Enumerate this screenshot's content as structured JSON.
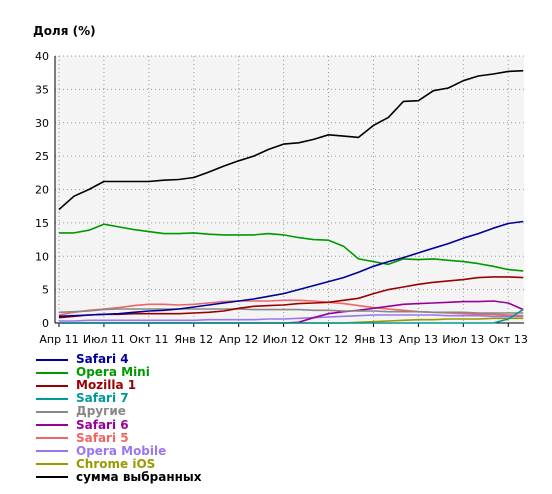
{
  "chart_data": {
    "type": "line",
    "title": "",
    "ylabel": "Доля (%)",
    "xlabel": "",
    "ylim": [
      0,
      40
    ],
    "yticks": [
      0,
      5,
      10,
      15,
      20,
      25,
      30,
      35,
      40
    ],
    "grid": true,
    "legend_position": "bottom",
    "x_ticks": [
      "Апр 11",
      "Июл 11",
      "Окт 11",
      "Янв 12",
      "Апр 12",
      "Июл 12",
      "Окт 12",
      "Янв 13",
      "Апр 13",
      "Июл 13",
      "Окт 13"
    ],
    "x": [
      "2011-04",
      "2011-05",
      "2011-06",
      "2011-07",
      "2011-08",
      "2011-09",
      "2011-10",
      "2011-11",
      "2011-12",
      "2012-01",
      "2012-02",
      "2012-03",
      "2012-04",
      "2012-05",
      "2012-06",
      "2012-07",
      "2012-08",
      "2012-09",
      "2012-10",
      "2012-11",
      "2012-12",
      "2013-01",
      "2013-02",
      "2013-03",
      "2013-04",
      "2013-05",
      "2013-06",
      "2013-07",
      "2013-08",
      "2013-09",
      "2013-10",
      "2013-11"
    ],
    "series": [
      {
        "name": "Safari 4",
        "color": "#000099",
        "values": [
          1.0,
          1.1,
          1.2,
          1.3,
          1.4,
          1.6,
          1.8,
          1.9,
          2.1,
          2.4,
          2.7,
          3.0,
          3.3,
          3.6,
          4.0,
          4.4,
          5.0,
          5.6,
          6.2,
          6.8,
          7.6,
          8.5,
          9.2,
          9.8,
          10.5,
          11.2,
          11.9,
          12.7,
          13.4,
          14.2,
          14.9,
          15.2
        ]
      },
      {
        "name": "Opera Mini",
        "color": "#009900",
        "values": [
          13.5,
          13.5,
          13.9,
          14.8,
          14.4,
          14.0,
          13.7,
          13.4,
          13.4,
          13.5,
          13.3,
          13.2,
          13.2,
          13.2,
          13.4,
          13.2,
          12.8,
          12.5,
          12.4,
          11.5,
          9.6,
          9.2,
          8.8,
          9.6,
          9.5,
          9.6,
          9.4,
          9.2,
          8.9,
          8.5,
          8.0,
          7.8
        ]
      },
      {
        "name": "Mozilla 1",
        "color": "#990000",
        "values": [
          0.8,
          1.0,
          1.2,
          1.3,
          1.3,
          1.4,
          1.4,
          1.4,
          1.4,
          1.5,
          1.6,
          1.8,
          2.2,
          2.5,
          2.6,
          2.7,
          2.9,
          3.0,
          3.1,
          3.4,
          3.7,
          4.4,
          5.0,
          5.4,
          5.8,
          6.1,
          6.3,
          6.5,
          6.8,
          6.9,
          6.9,
          6.8
        ]
      },
      {
        "name": "Safari 7",
        "color": "#009999",
        "values": [
          0,
          0,
          0,
          0,
          0,
          0,
          0,
          0,
          0,
          0,
          0,
          0,
          0,
          0,
          0,
          0,
          0,
          0,
          0,
          0,
          0,
          0,
          0,
          0,
          0,
          0,
          0,
          0,
          0,
          0,
          0.6,
          2.0
        ]
      },
      {
        "name": "Другие",
        "color": "#888888",
        "values": [
          1.6,
          1.7,
          1.8,
          2.0,
          2.1,
          2.1,
          2.1,
          2.1,
          2.1,
          2.1,
          2.1,
          2.1,
          2.1,
          2.0,
          2.0,
          2.0,
          2.0,
          1.9,
          1.9,
          1.8,
          1.8,
          1.8,
          1.7,
          1.7,
          1.7,
          1.6,
          1.6,
          1.6,
          1.5,
          1.5,
          1.5,
          1.5
        ]
      },
      {
        "name": "Safari 6",
        "color": "#990099",
        "values": [
          0,
          0,
          0,
          0,
          0,
          0,
          0,
          0,
          0,
          0,
          0,
          0,
          0,
          0,
          0,
          0,
          0.1,
          0.8,
          1.4,
          1.7,
          1.9,
          2.2,
          2.5,
          2.8,
          2.9,
          3.0,
          3.1,
          3.2,
          3.2,
          3.3,
          3.0,
          2.0
        ]
      },
      {
        "name": "Safari 5",
        "color": "#ee6666",
        "values": [
          1.2,
          1.6,
          1.9,
          2.1,
          2.3,
          2.6,
          2.8,
          2.8,
          2.7,
          2.8,
          3.0,
          3.2,
          3.3,
          3.3,
          3.3,
          3.4,
          3.4,
          3.3,
          3.1,
          2.9,
          2.6,
          2.3,
          2.1,
          1.9,
          1.7,
          1.6,
          1.5,
          1.4,
          1.3,
          1.3,
          1.2,
          1.1
        ]
      },
      {
        "name": "Opera Mobile",
        "color": "#9977ee",
        "values": [
          0.3,
          0.3,
          0.4,
          0.4,
          0.4,
          0.4,
          0.4,
          0.4,
          0.4,
          0.4,
          0.5,
          0.5,
          0.5,
          0.5,
          0.6,
          0.6,
          0.7,
          0.8,
          0.9,
          1.0,
          1.1,
          1.2,
          1.2,
          1.2,
          1.2,
          1.2,
          1.1,
          1.1,
          1.1,
          1.0,
          1.0,
          1.0
        ]
      },
      {
        "name": "Chrome iOS",
        "color": "#999900",
        "values": [
          0,
          0,
          0,
          0,
          0,
          0,
          0,
          0,
          0,
          0,
          0,
          0,
          0,
          0,
          0,
          0,
          0,
          0,
          0,
          0,
          0.1,
          0.2,
          0.3,
          0.4,
          0.5,
          0.5,
          0.6,
          0.6,
          0.6,
          0.7,
          0.7,
          0.7
        ]
      },
      {
        "name": "сумма выбранных",
        "color": "#000000",
        "values": [
          17.0,
          19.0,
          20.0,
          21.2,
          21.2,
          21.2,
          21.2,
          21.4,
          21.5,
          21.8,
          22.6,
          23.5,
          24.3,
          25.0,
          26.0,
          26.8,
          27.0,
          27.5,
          28.2,
          28.0,
          27.8,
          29.6,
          30.8,
          33.2,
          33.3,
          34.8,
          35.2,
          36.3,
          37.0,
          37.3,
          37.7,
          37.8
        ]
      }
    ]
  }
}
